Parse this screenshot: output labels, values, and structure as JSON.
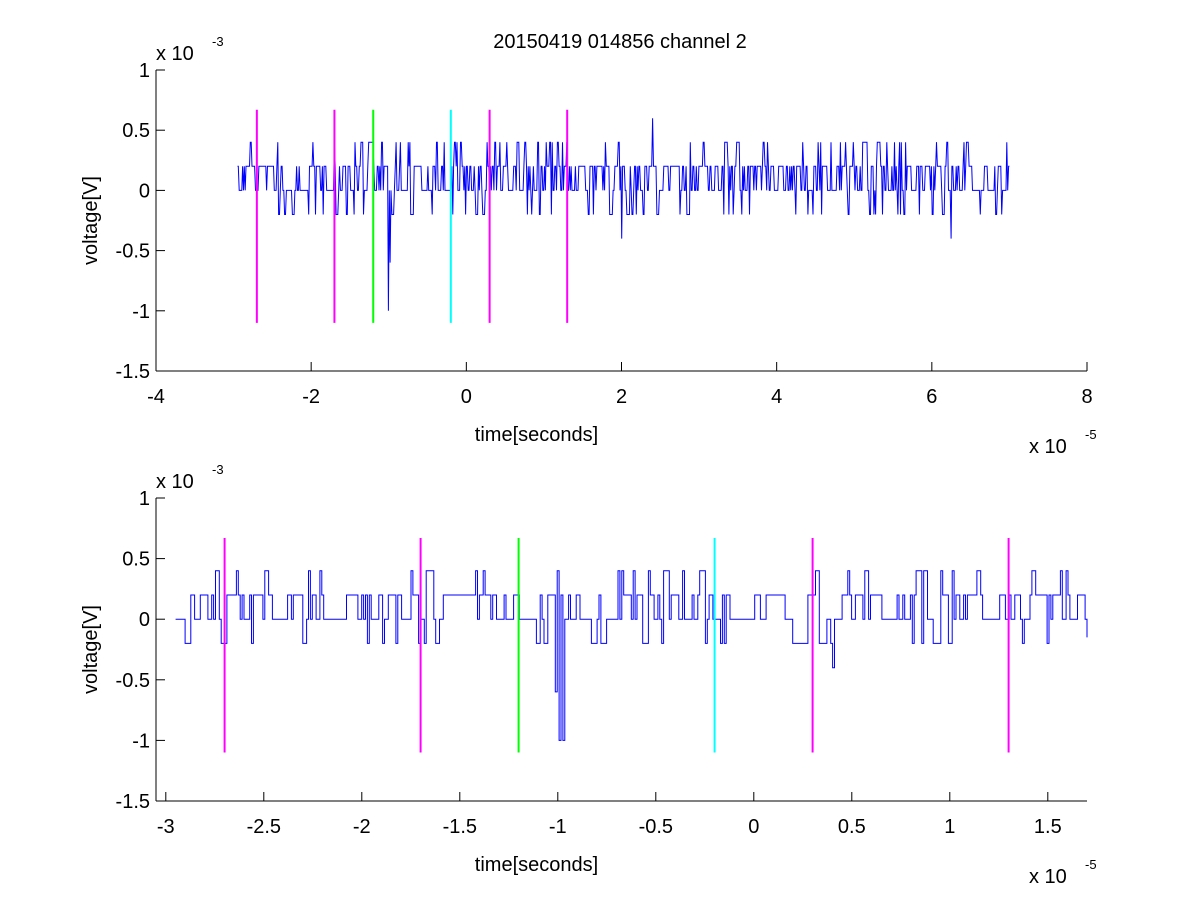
{
  "figure": {
    "title": "20150419 014856 channel 2",
    "background": "#ffffff"
  },
  "colors": {
    "signal": "#0000ff",
    "marker_magenta": "#ff00ff",
    "marker_green": "#00ff00",
    "marker_cyan": "#00ffff",
    "axis": "#000000"
  },
  "chart_data": [
    {
      "type": "line",
      "title": "20150419 014856 channel 2",
      "xlabel": "time[seconds]",
      "ylabel": "voltage[V]",
      "x_multiplier": {
        "base": "x 10",
        "exponent": "-5"
      },
      "y_multiplier": {
        "base": "x 10",
        "exponent": "-3"
      },
      "xlim": [
        -4,
        8
      ],
      "ylim": [
        -1.5,
        1
      ],
      "xticks": [
        "-4",
        "-2",
        "0",
        "2",
        "4",
        "6",
        "8"
      ],
      "yticks": [
        "-1.5",
        "-1",
        "-0.5",
        "0",
        "0.5",
        "1"
      ],
      "grid": false,
      "series": [
        {
          "x_start": -2.95,
          "x_end": 7.0,
          "baseline": 0.0,
          "level_values": [
            0,
            0.2,
            0.4,
            -0.2
          ],
          "spikes": [
            {
              "x": -1.0,
              "y": -1.0
            },
            {
              "x": -0.98,
              "y": -0.6
            },
            {
              "x": 2.4,
              "y": 0.6
            },
            {
              "x": 2.0,
              "y": -0.4
            },
            {
              "x": 6.25,
              "y": -0.4
            }
          ]
        }
      ],
      "markers": [
        {
          "x": -2.7,
          "y_top": 0.67,
          "y_bottom": -1.1,
          "color": "magenta"
        },
        {
          "x": -1.7,
          "y_top": 0.67,
          "y_bottom": -1.1,
          "color": "magenta"
        },
        {
          "x": -1.2,
          "y_top": 0.67,
          "y_bottom": -1.1,
          "color": "green"
        },
        {
          "x": -0.2,
          "y_top": 0.67,
          "y_bottom": -1.1,
          "color": "cyan"
        },
        {
          "x": 0.3,
          "y_top": 0.67,
          "y_bottom": -1.1,
          "color": "magenta"
        },
        {
          "x": 1.3,
          "y_top": 0.67,
          "y_bottom": -1.1,
          "color": "magenta"
        }
      ]
    },
    {
      "type": "line",
      "title": "",
      "xlabel": "time[seconds]",
      "ylabel": "voltage[V]",
      "x_multiplier": {
        "base": "x 10",
        "exponent": "-5"
      },
      "y_multiplier": {
        "base": "x 10",
        "exponent": "-3"
      },
      "xlim": [
        -3.05,
        1.7
      ],
      "ylim": [
        -1.5,
        1
      ],
      "xticks": [
        "-3",
        "-2.5",
        "-2",
        "-1.5",
        "-1",
        "-0.5",
        "0",
        "0.5",
        "1",
        "1.5"
      ],
      "xtick_values": [
        -3,
        -2.5,
        -2,
        -1.5,
        -1,
        -0.5,
        0,
        0.5,
        1,
        1.5
      ],
      "yticks": [
        "-1.5",
        "-1",
        "-0.5",
        "0",
        "0.5",
        "1"
      ],
      "grid": false,
      "series": [
        {
          "x_start": -2.95,
          "x_end": 1.7,
          "baseline": 0.0,
          "level_values": [
            0,
            0.2,
            0.4,
            -0.2
          ],
          "spikes": [
            {
              "x": -0.99,
              "y": -1.0
            },
            {
              "x": -0.97,
              "y": -1.0
            },
            {
              "x": -1.01,
              "y": -0.6
            },
            {
              "x": 0.4,
              "y": -0.4
            }
          ]
        }
      ],
      "markers": [
        {
          "x": -2.7,
          "y_top": 0.67,
          "y_bottom": -1.1,
          "color": "magenta"
        },
        {
          "x": -1.7,
          "y_top": 0.67,
          "y_bottom": -1.1,
          "color": "magenta"
        },
        {
          "x": -1.2,
          "y_top": 0.67,
          "y_bottom": -1.1,
          "color": "green"
        },
        {
          "x": -0.2,
          "y_top": 0.67,
          "y_bottom": -1.1,
          "color": "cyan"
        },
        {
          "x": 0.3,
          "y_top": 0.67,
          "y_bottom": -1.1,
          "color": "magenta"
        },
        {
          "x": 1.3,
          "y_top": 0.67,
          "y_bottom": -1.1,
          "color": "magenta"
        }
      ]
    }
  ]
}
